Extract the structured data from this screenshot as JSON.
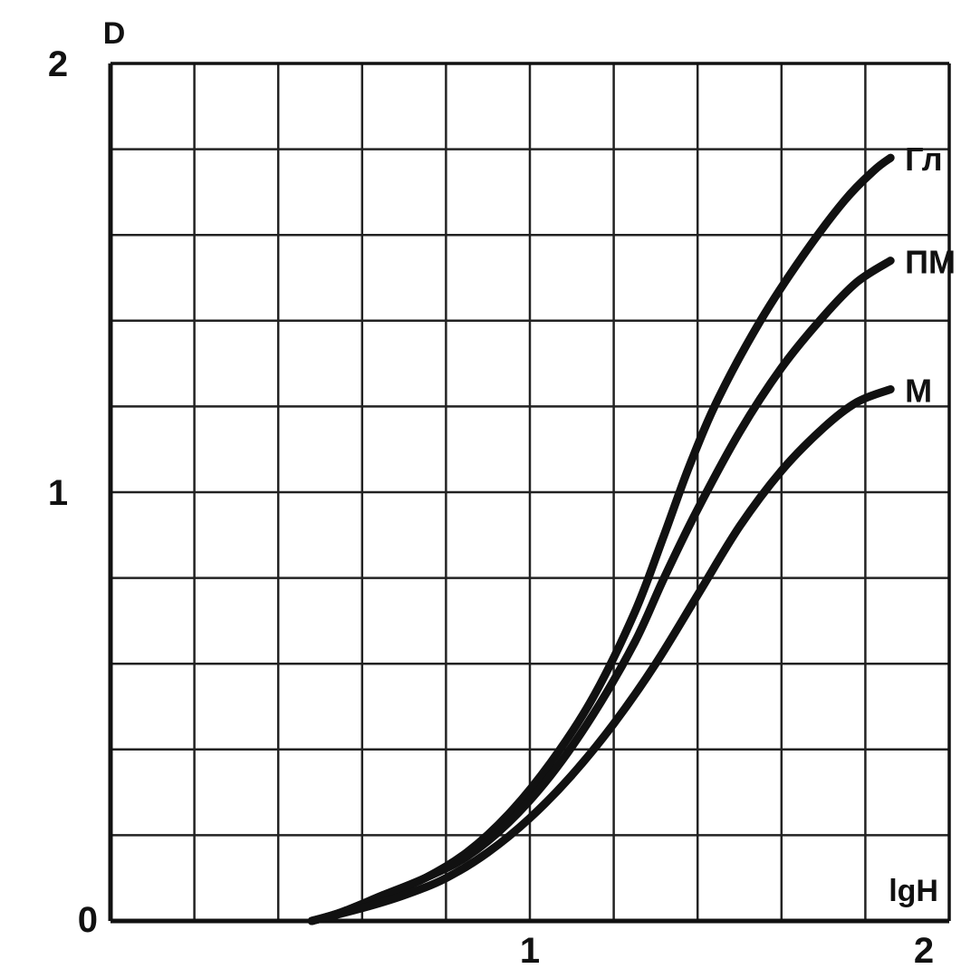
{
  "chart_data": {
    "type": "line",
    "xlabel": "lgH",
    "ylabel": "D",
    "xlim": [
      0,
      2
    ],
    "ylim": [
      0,
      2
    ],
    "grid": true,
    "x_ticks": [
      {
        "value": 0,
        "label": "0"
      },
      {
        "value": 1,
        "label": "1"
      },
      {
        "value": 2,
        "label": "2"
      }
    ],
    "y_ticks": [
      {
        "value": 1,
        "label": "1"
      },
      {
        "value": 2,
        "label": "2"
      }
    ],
    "series": [
      {
        "name": "Гл",
        "x": [
          0.48,
          0.55,
          0.65,
          0.75,
          0.85,
          0.95,
          1.05,
          1.15,
          1.25,
          1.32,
          1.38,
          1.45,
          1.55,
          1.65,
          1.75,
          1.82,
          1.86
        ],
        "y": [
          0.0,
          0.02,
          0.06,
          0.1,
          0.16,
          0.25,
          0.37,
          0.52,
          0.72,
          0.9,
          1.06,
          1.22,
          1.4,
          1.55,
          1.68,
          1.75,
          1.78
        ]
      },
      {
        "name": "ПМ",
        "x": [
          0.48,
          0.55,
          0.65,
          0.75,
          0.85,
          0.95,
          1.05,
          1.15,
          1.25,
          1.32,
          1.4,
          1.5,
          1.6,
          1.7,
          1.78,
          1.86
        ],
        "y": [
          0.0,
          0.02,
          0.06,
          0.1,
          0.15,
          0.23,
          0.34,
          0.48,
          0.65,
          0.8,
          0.96,
          1.14,
          1.29,
          1.41,
          1.49,
          1.54
        ]
      },
      {
        "name": "М",
        "x": [
          0.48,
          0.6,
          0.7,
          0.8,
          0.9,
          1.0,
          1.1,
          1.2,
          1.3,
          1.4,
          1.5,
          1.6,
          1.7,
          1.78,
          1.86
        ],
        "y": [
          0.0,
          0.03,
          0.06,
          0.1,
          0.16,
          0.24,
          0.34,
          0.46,
          0.6,
          0.76,
          0.92,
          1.05,
          1.15,
          1.21,
          1.24
        ]
      }
    ]
  }
}
